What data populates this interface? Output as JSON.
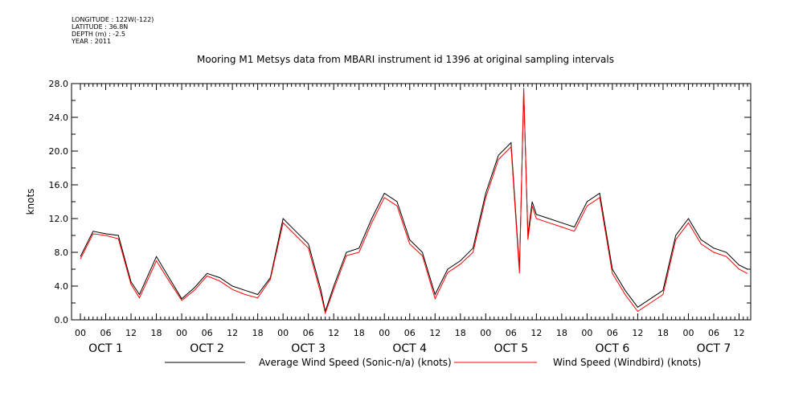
{
  "header": {
    "meta_lines": [
      "LONGITUDE : 122W(-122)",
      "LATITUDE : 36.8N",
      "DEPTH (m) : -2.5",
      "YEAR : 2011"
    ],
    "title": "Mooring M1 Metsys data from MBARI instrument id 1396 at original sampling intervals"
  },
  "chart_data": {
    "type": "line",
    "title": "Mooring M1 Metsys data from MBARI instrument id 1396 at original sampling intervals",
    "xlabel": "",
    "ylabel": "knots",
    "ylim": [
      0,
      28
    ],
    "yticks": [
      "0.0",
      "4.0",
      "8.0",
      "12.0",
      "16.0",
      "20.0",
      "24.0",
      "28.0"
    ],
    "xlim_hours_note": "",
    "hour_tick_labels": [
      "00",
      "06",
      "12",
      "18",
      "00",
      "06",
      "12",
      "18",
      "00",
      "06",
      "12",
      "18",
      "00",
      "06",
      "12",
      "18",
      "00",
      "06",
      "12",
      "18",
      "00",
      "06",
      "12",
      "18",
      "00",
      "06",
      "12"
    ],
    "day_labels": [
      "OCT 1",
      "OCT 2",
      "OCT 3",
      "OCT 4",
      "OCT 5",
      "OCT 6",
      "OCT 7"
    ],
    "grid": false,
    "legend": "bottom",
    "x": [
      "2011-10-01 00:00",
      "2011-10-01 03:00",
      "2011-10-01 06:00",
      "2011-10-01 09:00",
      "2011-10-01 12:00",
      "2011-10-01 14:00",
      "2011-10-01 18:00",
      "2011-10-01 21:00",
      "2011-10-02 00:00",
      "2011-10-02 03:00",
      "2011-10-02 06:00",
      "2011-10-02 09:00",
      "2011-10-02 12:00",
      "2011-10-02 15:00",
      "2011-10-02 18:00",
      "2011-10-02 21:00",
      "2011-10-03 00:00",
      "2011-10-03 03:00",
      "2011-10-03 06:00",
      "2011-10-03 09:00",
      "2011-10-03 10:00",
      "2011-10-03 12:00",
      "2011-10-03 15:00",
      "2011-10-03 18:00",
      "2011-10-03 21:00",
      "2011-10-04 00:00",
      "2011-10-04 03:00",
      "2011-10-04 06:00",
      "2011-10-04 09:00",
      "2011-10-04 12:00",
      "2011-10-04 15:00",
      "2011-10-04 18:00",
      "2011-10-04 21:00",
      "2011-10-05 00:00",
      "2011-10-05 03:00",
      "2011-10-05 06:00",
      "2011-10-05 08:00",
      "2011-10-05 09:00",
      "2011-10-05 10:00",
      "2011-10-05 11:00",
      "2011-10-05 12:00",
      "2011-10-05 15:00",
      "2011-10-05 18:00",
      "2011-10-05 21:00",
      "2011-10-06 00:00",
      "2011-10-06 03:00",
      "2011-10-06 06:00",
      "2011-10-06 09:00",
      "2011-10-06 12:00",
      "2011-10-06 15:00",
      "2011-10-06 18:00",
      "2011-10-06 21:00",
      "2011-10-07 00:00",
      "2011-10-07 03:00",
      "2011-10-07 06:00",
      "2011-10-07 09:00",
      "2011-10-07 12:00",
      "2011-10-07 14:00"
    ],
    "series": [
      {
        "name": "Average Wind Speed (Sonic-n/a) (knots)",
        "color": "#000000",
        "values": [
          7.5,
          10.5,
          10.2,
          10.0,
          4.5,
          3.0,
          7.5,
          5.0,
          2.5,
          3.8,
          5.5,
          5.0,
          4.0,
          3.5,
          3.0,
          5.0,
          12.0,
          10.5,
          9.0,
          3.5,
          1.0,
          4.0,
          8.0,
          8.5,
          12.0,
          15.0,
          14.0,
          9.5,
          8.0,
          3.0,
          6.0,
          7.0,
          8.5,
          15.0,
          19.5,
          21.0,
          6.0,
          27.0,
          10.0,
          14.0,
          12.5,
          12.0,
          11.5,
          11.0,
          14.0,
          15.0,
          6.0,
          3.5,
          1.5,
          2.5,
          3.5,
          10.0,
          12.0,
          9.5,
          8.5,
          8.0,
          6.5,
          6.0
        ]
      },
      {
        "name": "Wind Speed (Windbird) (knots)",
        "color": "#ff0000",
        "values": [
          7.2,
          10.2,
          10.0,
          9.6,
          4.2,
          2.6,
          7.0,
          4.6,
          2.3,
          3.5,
          5.2,
          4.6,
          3.6,
          3.0,
          2.6,
          4.8,
          11.5,
          10.0,
          8.5,
          3.0,
          0.8,
          3.6,
          7.6,
          8.0,
          11.5,
          14.5,
          13.5,
          9.0,
          7.6,
          2.5,
          5.6,
          6.6,
          8.0,
          14.5,
          19.0,
          20.5,
          5.5,
          27.5,
          9.5,
          13.5,
          12.0,
          11.5,
          11.0,
          10.5,
          13.5,
          14.5,
          5.5,
          3.0,
          1.0,
          2.0,
          3.0,
          9.5,
          11.5,
          9.0,
          8.0,
          7.5,
          6.0,
          5.5
        ]
      }
    ]
  }
}
